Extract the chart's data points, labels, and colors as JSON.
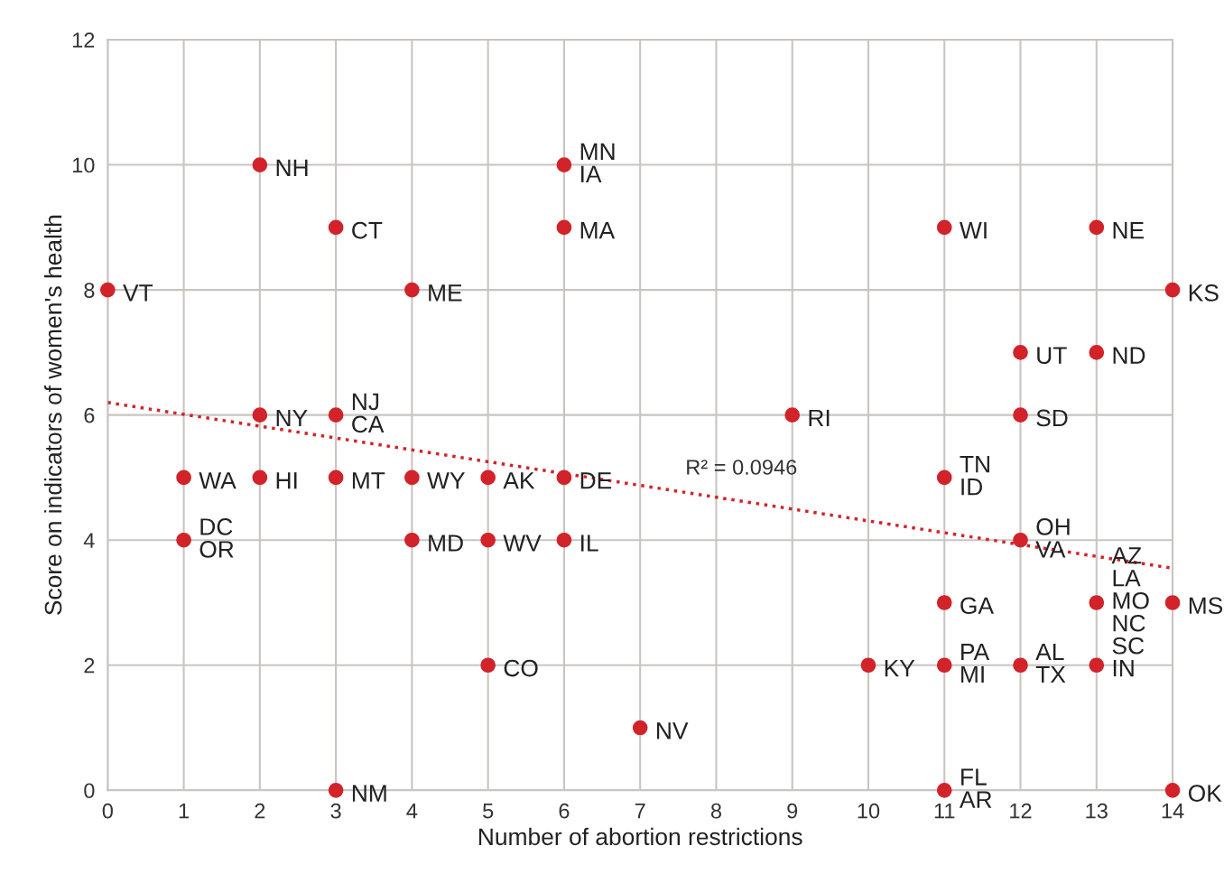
{
  "chart_data": {
    "type": "scatter",
    "xlabel": "Number of abortion restrictions",
    "ylabel": "Score on indicators of women's health",
    "xlim": [
      0,
      14
    ],
    "xticks": [
      0,
      1,
      2,
      3,
      4,
      5,
      6,
      7,
      8,
      9,
      10,
      11,
      12,
      13,
      14
    ],
    "ylim": [
      0,
      12
    ],
    "yticks": [
      0,
      2,
      4,
      6,
      8,
      10,
      12
    ],
    "grid": true,
    "legend": false,
    "series": [
      {
        "marker": "circle",
        "color": "#d2232a",
        "x": [
          0,
          2,
          3,
          4,
          6,
          6,
          11,
          13,
          14,
          12,
          13,
          2,
          3,
          9,
          12,
          1,
          2,
          3,
          4,
          5,
          6,
          11,
          1,
          4,
          5,
          6,
          12,
          11,
          13,
          14,
          5,
          10,
          11,
          12,
          13,
          7,
          3,
          11,
          14
        ],
        "values": [
          8,
          10,
          9,
          8,
          10,
          9,
          9,
          9,
          8,
          7,
          7,
          6,
          6,
          6,
          6,
          5,
          5,
          5,
          5,
          5,
          5,
          5,
          4,
          4,
          4,
          4,
          4,
          3,
          3,
          3,
          2,
          2,
          2,
          2,
          2,
          1,
          0,
          0,
          0
        ]
      },
      {
        "type": "line",
        "marker": "none",
        "color": "#d2232a",
        "line_style": "dotted",
        "x": [
          0,
          14
        ],
        "values": [
          6.2,
          3.55
        ]
      }
    ],
    "annotations": [
      {
        "text": "VT",
        "x": 0,
        "y": 8
      },
      {
        "text": "NH",
        "x": 2,
        "y": 10
      },
      {
        "text": "CT",
        "x": 3,
        "y": 9
      },
      {
        "text": "ME",
        "x": 4,
        "y": 8
      },
      {
        "text": "MN",
        "x": 6,
        "y": 10
      },
      {
        "text": "IA",
        "x": 6,
        "y": 10
      },
      {
        "text": "MA",
        "x": 6,
        "y": 9
      },
      {
        "text": "WI",
        "x": 11,
        "y": 9
      },
      {
        "text": "NE",
        "x": 13,
        "y": 9
      },
      {
        "text": "KS",
        "x": 14,
        "y": 8
      },
      {
        "text": "UT",
        "x": 12,
        "y": 7
      },
      {
        "text": "ND",
        "x": 13,
        "y": 7
      },
      {
        "text": "NY",
        "x": 2,
        "y": 6
      },
      {
        "text": "NJ",
        "x": 3,
        "y": 6
      },
      {
        "text": "CA",
        "x": 3,
        "y": 6
      },
      {
        "text": "RI",
        "x": 9,
        "y": 6
      },
      {
        "text": "SD",
        "x": 12,
        "y": 6
      },
      {
        "text": "WA",
        "x": 1,
        "y": 5
      },
      {
        "text": "HI",
        "x": 2,
        "y": 5
      },
      {
        "text": "MT",
        "x": 3,
        "y": 5
      },
      {
        "text": "WY",
        "x": 4,
        "y": 5
      },
      {
        "text": "AK",
        "x": 5,
        "y": 5
      },
      {
        "text": "DE",
        "x": 6,
        "y": 5
      },
      {
        "text": "TN",
        "x": 11,
        "y": 5
      },
      {
        "text": "ID",
        "x": 11,
        "y": 5
      },
      {
        "text": "DC",
        "x": 1,
        "y": 4
      },
      {
        "text": "OR",
        "x": 1,
        "y": 4
      },
      {
        "text": "MD",
        "x": 4,
        "y": 4
      },
      {
        "text": "WV",
        "x": 5,
        "y": 4
      },
      {
        "text": "IL",
        "x": 6,
        "y": 4
      },
      {
        "text": "OH",
        "x": 12,
        "y": 4
      },
      {
        "text": "VA",
        "x": 12,
        "y": 4
      },
      {
        "text": "GA",
        "x": 11,
        "y": 3
      },
      {
        "text": "AZ",
        "x": 13,
        "y": 3
      },
      {
        "text": "LA",
        "x": 13,
        "y": 3
      },
      {
        "text": "MO",
        "x": 13,
        "y": 3
      },
      {
        "text": "NC",
        "x": 13,
        "y": 3
      },
      {
        "text": "SC",
        "x": 13,
        "y": 3
      },
      {
        "text": "MS",
        "x": 14,
        "y": 3
      },
      {
        "text": "CO",
        "x": 5,
        "y": 2
      },
      {
        "text": "KY",
        "x": 10,
        "y": 2
      },
      {
        "text": "PA",
        "x": 11,
        "y": 2
      },
      {
        "text": "MI",
        "x": 11,
        "y": 2
      },
      {
        "text": "AL",
        "x": 12,
        "y": 2
      },
      {
        "text": "TX",
        "x": 12,
        "y": 2
      },
      {
        "text": "IN",
        "x": 13,
        "y": 2
      },
      {
        "text": "NV",
        "x": 7,
        "y": 1
      },
      {
        "text": "NM",
        "x": 3,
        "y": 0
      },
      {
        "text": "FL",
        "x": 11,
        "y": 0
      },
      {
        "text": "AR",
        "x": 11,
        "y": 0
      },
      {
        "text": "OK",
        "x": 14,
        "y": 0
      },
      "R² = 0.0946"
    ]
  }
}
